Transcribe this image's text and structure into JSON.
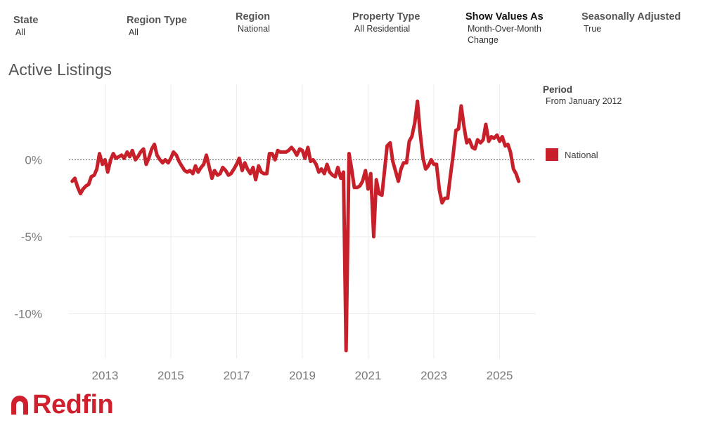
{
  "filters": {
    "state": {
      "label": "State",
      "value": "All"
    },
    "region_type": {
      "label": "Region Type",
      "value": "All"
    },
    "region": {
      "label": "Region",
      "value": "National"
    },
    "property_type": {
      "label": "Property Type",
      "value": "All Residential"
    },
    "show_values_as": {
      "label": "Show Values As",
      "value": "Month-Over-Month\nChange"
    },
    "seasonally_adjusted": {
      "label": "Seasonally Adjusted",
      "value": "True"
    }
  },
  "legend": {
    "title": "Period",
    "subtitle": "From January 2012",
    "item": "National"
  },
  "brand": {
    "name": "Redfin",
    "color": "#c8202a"
  },
  "chart_data": {
    "type": "line",
    "title": "Active Listings",
    "xlabel": "",
    "ylabel": "",
    "x_ticks": [
      2013,
      2015,
      2017,
      2019,
      2021,
      2023,
      2025
    ],
    "y_ticks": [
      0,
      -5,
      -10
    ],
    "y_tick_labels": [
      "0%",
      "-5%",
      "-10%"
    ],
    "xlim": [
      2011.9,
      2026.1
    ],
    "ylim": [
      -12.9,
      4.9
    ],
    "zero_line": true,
    "grid": true,
    "series": [
      {
        "name": "National",
        "color": "#c8202a",
        "x": [
          2012.0,
          2012.08,
          2012.17,
          2012.25,
          2012.33,
          2012.42,
          2012.5,
          2012.58,
          2012.67,
          2012.75,
          2012.83,
          2012.92,
          2013.0,
          2013.08,
          2013.17,
          2013.25,
          2013.33,
          2013.42,
          2013.5,
          2013.58,
          2013.67,
          2013.75,
          2013.83,
          2013.92,
          2014.0,
          2014.08,
          2014.17,
          2014.25,
          2014.33,
          2014.42,
          2014.5,
          2014.58,
          2014.67,
          2014.75,
          2014.83,
          2014.92,
          2015.0,
          2015.08,
          2015.17,
          2015.25,
          2015.33,
          2015.42,
          2015.5,
          2015.58,
          2015.67,
          2015.75,
          2015.83,
          2015.92,
          2016.0,
          2016.08,
          2016.17,
          2016.25,
          2016.33,
          2016.42,
          2016.5,
          2016.58,
          2016.67,
          2016.75,
          2016.83,
          2016.92,
          2017.0,
          2017.08,
          2017.17,
          2017.25,
          2017.33,
          2017.42,
          2017.5,
          2017.58,
          2017.67,
          2017.75,
          2017.83,
          2017.92,
          2018.0,
          2018.08,
          2018.17,
          2018.25,
          2018.33,
          2018.42,
          2018.5,
          2018.58,
          2018.67,
          2018.75,
          2018.83,
          2018.92,
          2019.0,
          2019.08,
          2019.17,
          2019.25,
          2019.33,
          2019.42,
          2019.5,
          2019.58,
          2019.67,
          2019.75,
          2019.83,
          2019.92,
          2020.0,
          2020.08,
          2020.17,
          2020.25,
          2020.33,
          2020.42,
          2020.5,
          2020.58,
          2020.67,
          2020.75,
          2020.83,
          2020.92,
          2021.0,
          2021.08,
          2021.17,
          2021.25,
          2021.33,
          2021.42,
          2021.5,
          2021.58,
          2021.67,
          2021.75,
          2021.83,
          2021.92,
          2022.0,
          2022.08,
          2022.17,
          2022.25,
          2022.33,
          2022.42,
          2022.5,
          2022.58,
          2022.67,
          2022.75,
          2022.83,
          2022.92,
          2023.0,
          2023.08,
          2023.17,
          2023.25,
          2023.33,
          2023.42,
          2023.5,
          2023.58,
          2023.67,
          2023.75,
          2023.83,
          2023.92,
          2024.0,
          2024.08,
          2024.17,
          2024.25,
          2024.33,
          2024.42,
          2024.5,
          2024.58,
          2024.67,
          2024.75,
          2024.83,
          2024.92,
          2025.0,
          2025.08,
          2025.17,
          2025.25,
          2025.33,
          2025.42,
          2025.5,
          2025.58
        ],
        "values": [
          -1.4,
          -1.2,
          -1.8,
          -2.2,
          -1.9,
          -1.7,
          -1.6,
          -1.1,
          -1.0,
          -0.6,
          0.4,
          -0.3,
          0.0,
          -0.8,
          0.0,
          0.4,
          0.1,
          0.2,
          0.3,
          0.1,
          0.5,
          0.2,
          0.6,
          0.0,
          0.2,
          0.5,
          0.7,
          -0.3,
          0.1,
          0.7,
          1.0,
          0.3,
          0.0,
          -0.2,
          0.0,
          -0.2,
          0.1,
          0.5,
          0.3,
          -0.1,
          -0.4,
          -0.7,
          -0.8,
          -0.7,
          -0.9,
          -0.4,
          -0.8,
          -0.5,
          -0.3,
          0.3,
          -0.5,
          -1.2,
          -0.7,
          -1.0,
          -0.9,
          -0.5,
          -0.7,
          -1.0,
          -0.9,
          -0.6,
          -0.3,
          0.1,
          -0.7,
          -0.2,
          -0.6,
          -0.9,
          -0.5,
          -1.3,
          -0.4,
          -0.8,
          -0.9,
          -0.9,
          0.4,
          0.4,
          0.0,
          0.6,
          0.5,
          0.5,
          0.5,
          0.6,
          0.8,
          0.6,
          0.3,
          0.7,
          0.6,
          0.1,
          0.8,
          -0.1,
          0.0,
          -0.3,
          -0.8,
          -0.6,
          -0.9,
          -0.3,
          -0.8,
          -1.0,
          -1.1,
          -0.5,
          -1.2,
          -0.8,
          -12.4,
          0.4,
          -0.6,
          -1.8,
          -1.8,
          -1.7,
          -1.4,
          -0.7,
          -1.9,
          -0.9,
          -5.0,
          -1.3,
          -2.2,
          -2.3,
          -0.7,
          0.9,
          1.1,
          -0.1,
          -0.7,
          -1.4,
          -0.6,
          -0.2,
          -0.2,
          1.2,
          1.5,
          2.4,
          3.8,
          1.8,
          0.1,
          -0.6,
          -0.4,
          0.0,
          -0.3,
          -0.3,
          -2.0,
          -2.8,
          -2.5,
          -2.5,
          -1.1,
          0.2,
          1.9,
          2.0,
          3.5,
          2.1,
          1.1,
          1.3,
          0.8,
          0.7,
          1.3,
          1.1,
          1.3,
          2.3,
          1.2,
          1.5,
          1.4,
          1.6,
          1.2,
          1.5,
          0.9,
          1.0,
          0.5,
          -0.6,
          -0.9,
          -1.4
        ]
      }
    ]
  }
}
